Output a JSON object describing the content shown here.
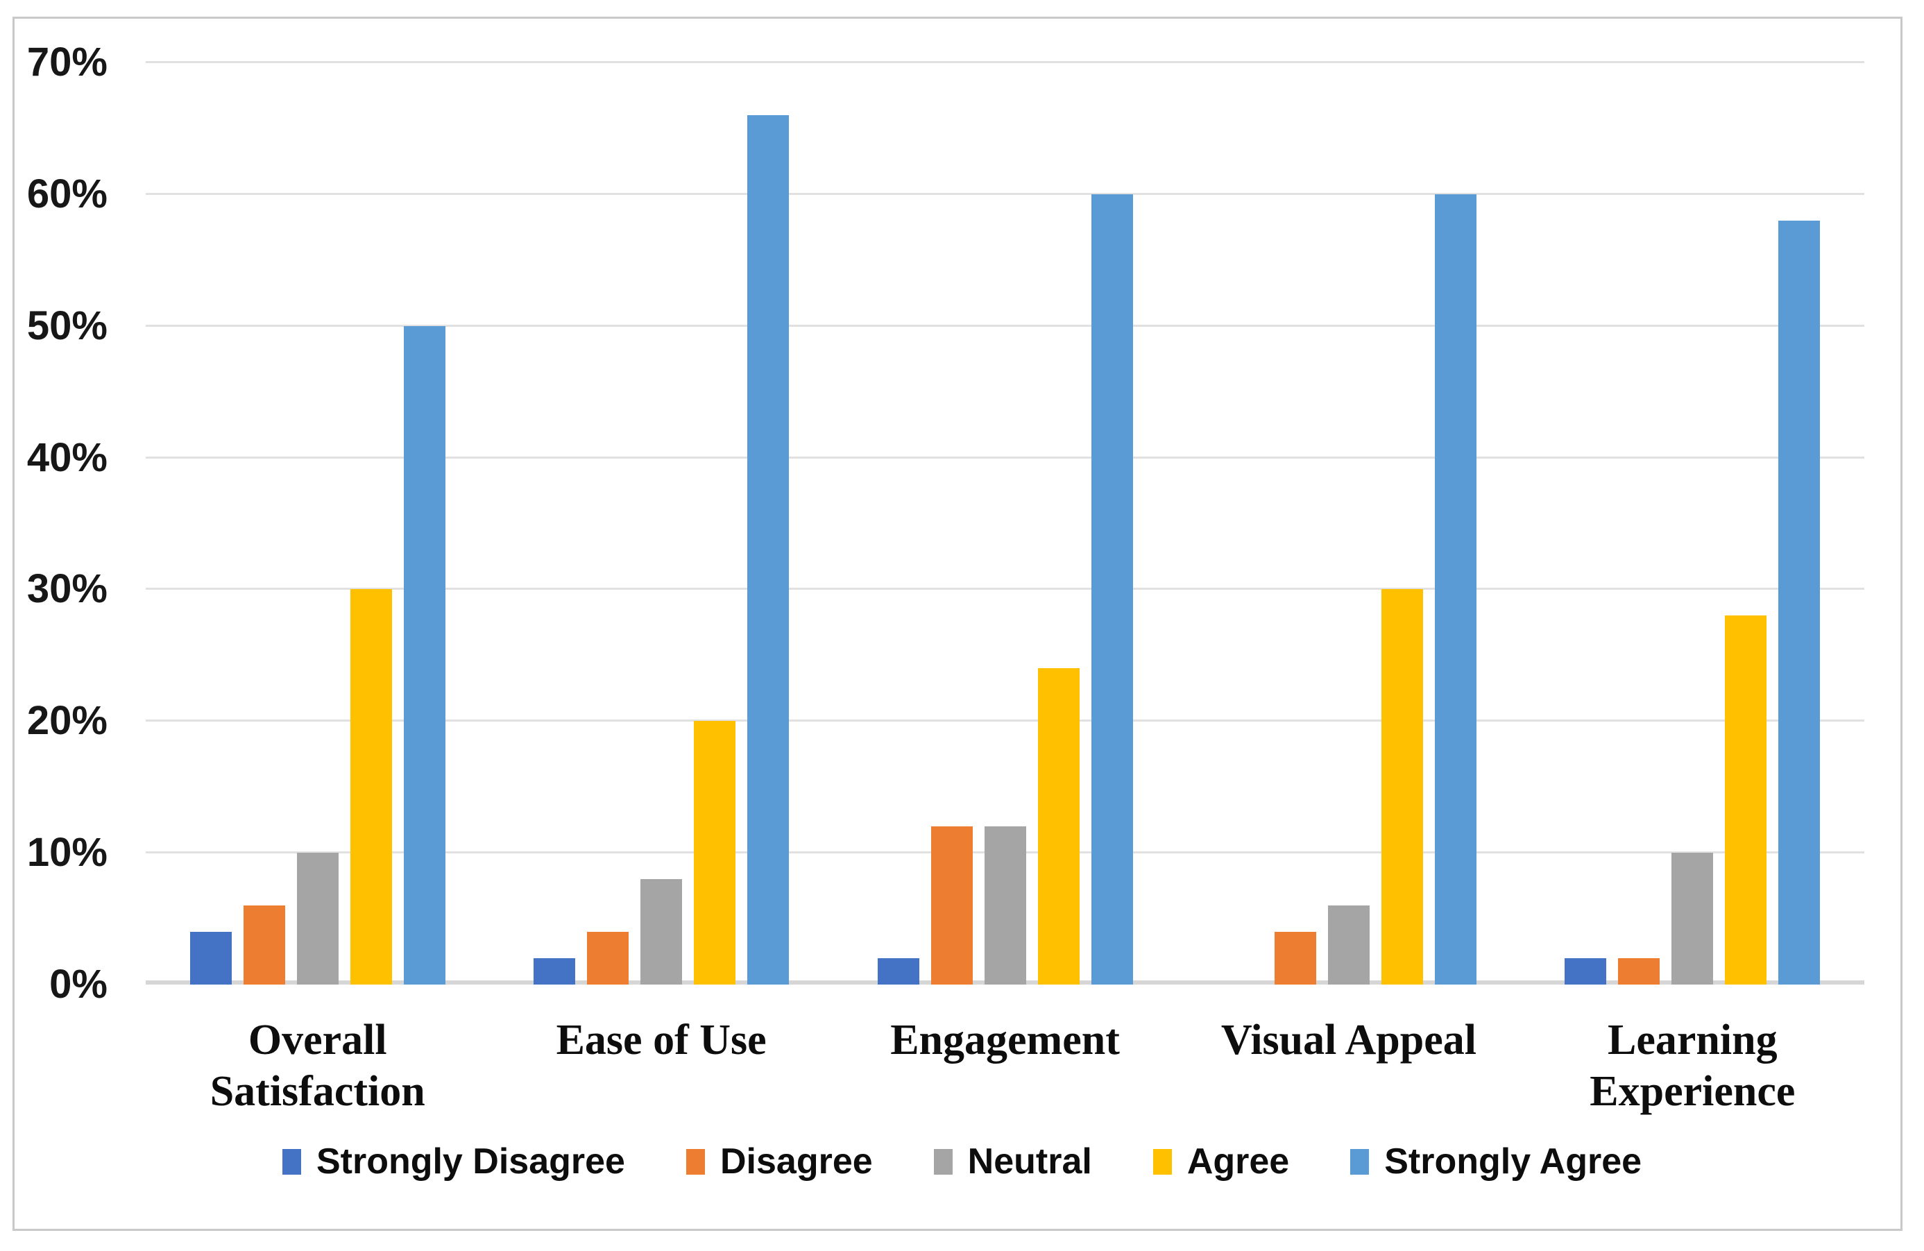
{
  "figure": {
    "background": "#FFFFFF",
    "border_color": "#C9C9C9"
  },
  "chart_data": {
    "type": "bar",
    "title": "",
    "xlabel": "",
    "ylabel": "",
    "categories": [
      "Overall Satisfaction",
      "Ease of Use",
      "Engagement",
      "Visual Appeal",
      "Learning Experience"
    ],
    "series": [
      {
        "name": "Strongly Disagree",
        "color": "#4472C4",
        "values": [
          4,
          2,
          2,
          0,
          2
        ]
      },
      {
        "name": "Disagree",
        "color": "#ED7D31",
        "values": [
          6,
          4,
          12,
          4,
          2
        ]
      },
      {
        "name": "Neutral",
        "color": "#A5A5A5",
        "values": [
          10,
          8,
          12,
          6,
          10
        ]
      },
      {
        "name": "Agree",
        "color": "#FFC000",
        "values": [
          30,
          20,
          24,
          30,
          28
        ]
      },
      {
        "name": "Strongly Agree",
        "color": "#5B9BD5",
        "values": [
          50,
          66,
          60,
          60,
          58
        ]
      }
    ],
    "y_axis": {
      "min": 0,
      "max": 70,
      "step": 10,
      "format": "percent",
      "tick_labels": [
        "0%",
        "10%",
        "20%",
        "30%",
        "40%",
        "50%",
        "60%",
        "70%"
      ]
    },
    "grid": true,
    "gridline_color": "#E1E1E1",
    "axis_line_color": "#D6D6D6",
    "legend_position": "bottom"
  }
}
